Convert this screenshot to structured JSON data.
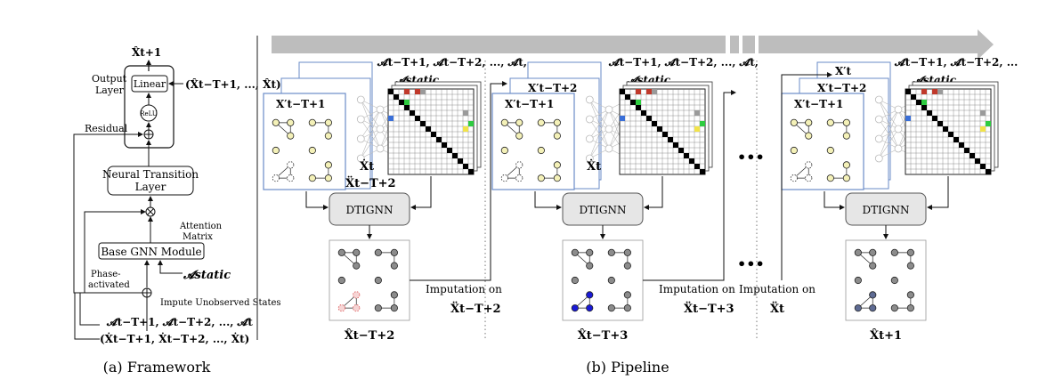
{
  "framework": {
    "caption": "(a) Framework",
    "output_top": "X̂t+1",
    "output_layer_label": [
      "Output",
      "Layer"
    ],
    "linear_label": "Linear",
    "relu_label": "ReLU",
    "output_seq": "(X̂t−T+1, ..., X̂t)",
    "residual_label": "Residual",
    "ntl_label": [
      "Neural Transition",
      "Layer"
    ],
    "attention_label": [
      "Attention",
      "Matrix"
    ],
    "base_gnn_label": "Base GNN Module",
    "static_label": "𝓐static",
    "phase_label": [
      "Phase-",
      "activated"
    ],
    "impute_label": "Impute Unobserved States",
    "adj_seq": "𝓐t−T+1, 𝓐t−T+2, ..., 𝓐t",
    "x_seq": "(Ẋt−T+1, Ẋt−T+2, ..., Ẋt)"
  },
  "pipeline": {
    "caption": "(b) Pipeline",
    "ellipsis": "•••",
    "stages": [
      {
        "adj_seq": "𝓐t−T+1, 𝓐t−T+2, ..., 𝓐t,",
        "static": "𝓐static",
        "front_label": "X′t−T+1",
        "back_label": "",
        "dot_label": "Ẋt",
        "under_label": "Ẍt−T+2",
        "dtignn": "DTIGNN",
        "output": "X̂t−T+2",
        "imputation_title": "Imputation on",
        "imputation_var": "Ẍt−T+2"
      },
      {
        "adj_seq": "𝓐t−T+1, 𝓐t−T+2, ..., 𝓐t,",
        "static": "𝓐static",
        "front_label": "X′t−T+1",
        "back_label": "X′t−T+2",
        "dot_label": "Ẋt",
        "under_label": "",
        "dtignn": "DTIGNN",
        "output": "X̂t−T+3",
        "imputation_title": "Imputation on",
        "imputation_var": "Ẍt−T+3"
      },
      {
        "adj_seq": "𝓐t−T+1, 𝓐t−T+2, ...",
        "static": "𝓐static",
        "front_label": "X′t−T+1",
        "back_label": "X′t−T+2",
        "top_label": "X′t",
        "dot_label": "",
        "under_label": "",
        "dtignn": "DTIGNN",
        "output": "X̂t+1",
        "imputation_title": "Imputation on",
        "imputation_var": "Ẍt"
      }
    ]
  },
  "colors": {
    "node_yellow": "#f4f1b8",
    "node_gray": "#8c8c8c",
    "node_blue": "#1a1ad6",
    "node_slate": "#5e6b93",
    "node_red": "#d94f4f",
    "arrow_bar": "#bdbdbd",
    "matrix_black": "#000000",
    "cell_red": "#c0392b",
    "cell_green": "#2ecc40",
    "cell_blue": "#3a6fd8",
    "cell_yellow": "#f1e34a",
    "cell_gray": "#9a9a9a"
  }
}
